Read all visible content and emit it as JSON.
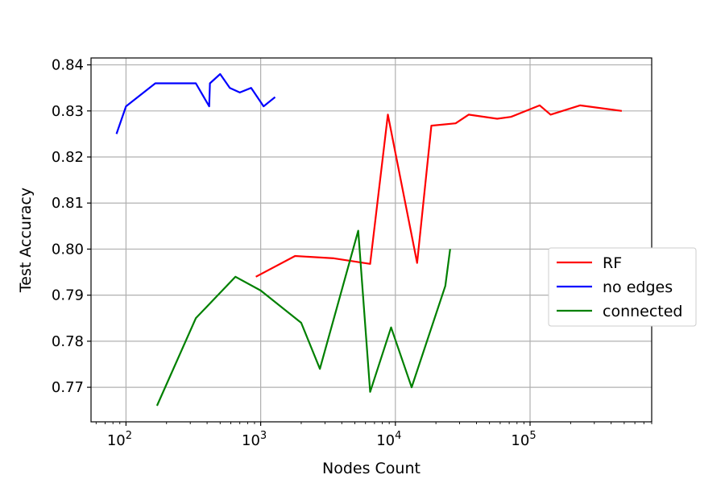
{
  "chart_data": {
    "type": "line",
    "title": "",
    "xlabel": "Nodes Count",
    "ylabel": "Test Accuracy",
    "xscale": "log",
    "xlim": [
      55,
      800000
    ],
    "ylim": [
      0.7625,
      0.8415
    ],
    "grid": true,
    "legend_position": "right",
    "x_ticks": [
      {
        "value": 100,
        "base": "10",
        "exp": "2"
      },
      {
        "value": 1000,
        "base": "10",
        "exp": "3"
      },
      {
        "value": 10000,
        "base": "10",
        "exp": "4"
      },
      {
        "value": 100000,
        "base": "10",
        "exp": "5"
      }
    ],
    "y_ticks": [
      0.77,
      0.78,
      0.79,
      0.8,
      0.81,
      0.82,
      0.83,
      0.84
    ],
    "y_tick_labels": [
      "0.77",
      "0.78",
      "0.79",
      "0.80",
      "0.81",
      "0.82",
      "0.83",
      "0.84"
    ],
    "series": [
      {
        "name": "RF",
        "color": "#ff0000",
        "x": [
          920,
          1800,
          3500,
          6500,
          8800,
          14500,
          18500,
          28000,
          35000,
          57000,
          72000,
          118000,
          142000,
          235000,
          480000
        ],
        "y": [
          0.794,
          0.7985,
          0.798,
          0.7968,
          0.8292,
          0.797,
          0.8268,
          0.8273,
          0.8292,
          0.8283,
          0.8287,
          0.8312,
          0.8292,
          0.8312,
          0.83
        ]
      },
      {
        "name": "no edges",
        "color": "#0000ff",
        "x": [
          85,
          100,
          165,
          330,
          415,
          420,
          500,
          590,
          700,
          850,
          1050,
          1280
        ],
        "y": [
          0.825,
          0.831,
          0.836,
          0.836,
          0.831,
          0.836,
          0.838,
          0.835,
          0.834,
          0.835,
          0.831,
          0.833
        ]
      },
      {
        "name": "connected",
        "color": "#008000",
        "x": [
          170,
          330,
          650,
          1000,
          2000,
          2750,
          5300,
          6500,
          9300,
          13200,
          23500,
          25500
        ],
        "y": [
          0.766,
          0.785,
          0.794,
          0.791,
          0.784,
          0.774,
          0.804,
          0.769,
          0.783,
          0.77,
          0.792,
          0.8
        ]
      }
    ]
  }
}
